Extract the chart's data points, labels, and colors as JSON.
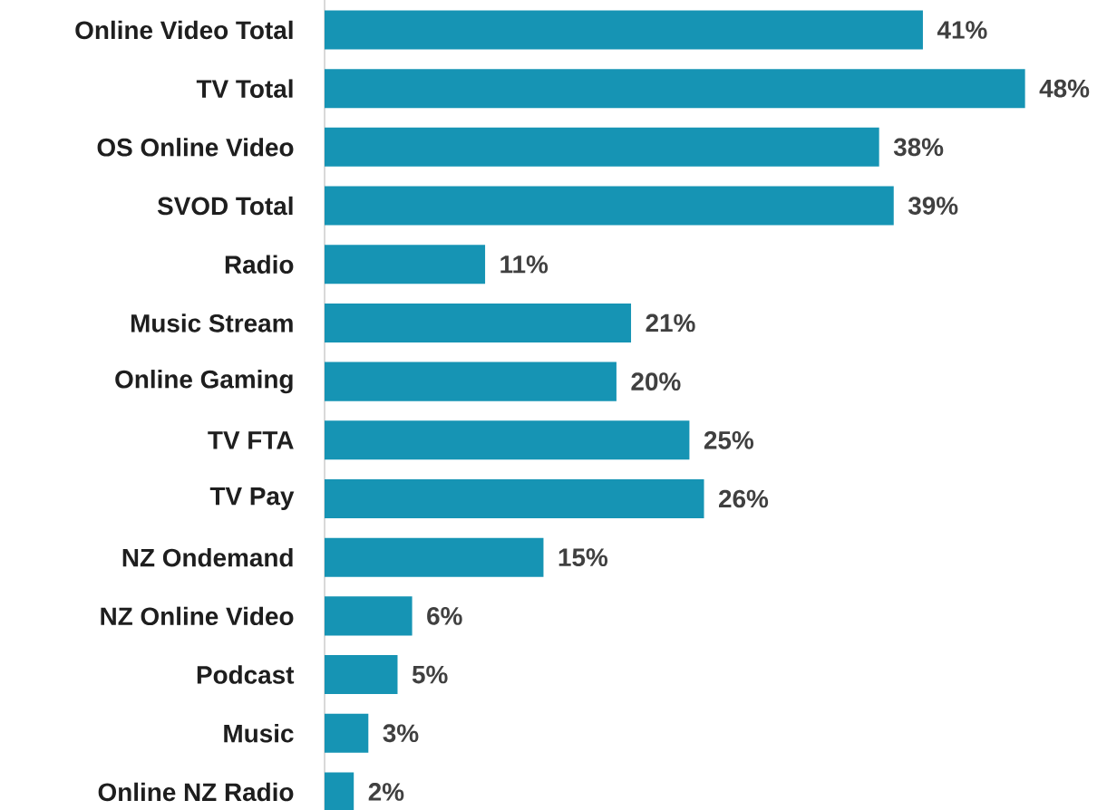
{
  "chart_data": {
    "type": "bar",
    "orientation": "horizontal",
    "color": "#1694b4",
    "categories": [
      "Online Video Total",
      "TV Total",
      "OS Online Video",
      "SVOD Total",
      "Radio",
      "Music Stream",
      "Online Gaming",
      "TV FTA",
      "TV Pay",
      "NZ Ondemand",
      "NZ Online Video",
      "Podcast",
      "Music",
      "Online NZ Radio"
    ],
    "values": [
      41,
      48,
      38,
      39,
      11,
      21,
      20,
      25,
      26,
      15,
      6,
      5,
      3,
      2
    ],
    "value_labels": [
      "41%",
      "48%",
      "38%",
      "39%",
      "11%",
      "21%",
      "20%",
      "25%",
      "26%",
      "15%",
      "6%",
      "5%",
      "3%",
      "2%"
    ]
  }
}
